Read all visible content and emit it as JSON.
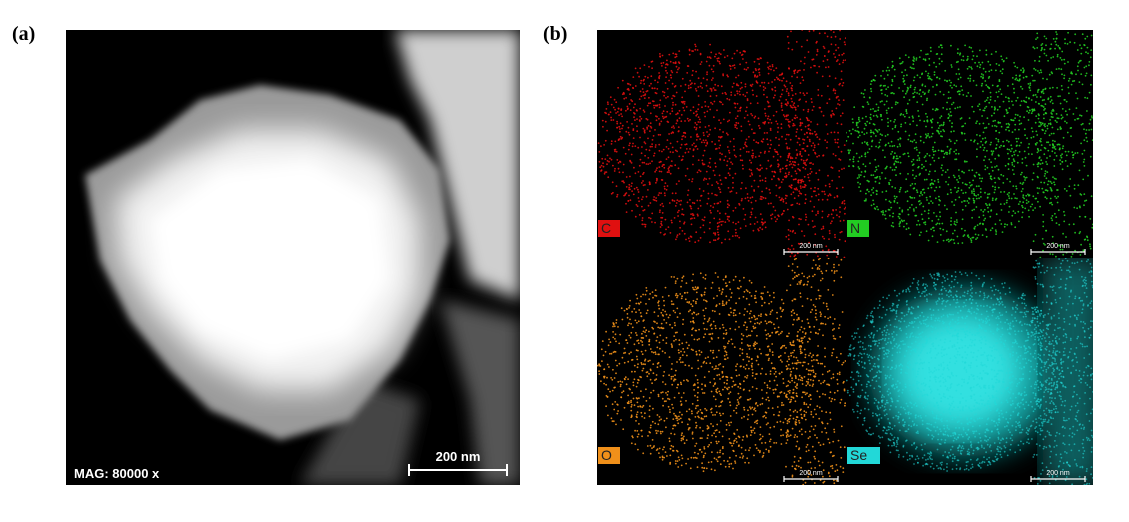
{
  "panel_a": {
    "label": "(a)",
    "magnification": "MAG: 80000 x",
    "scale_bar": "200 nm"
  },
  "panel_b": {
    "label": "(b)",
    "maps": [
      {
        "element": "C",
        "scale_bar": "200 nm"
      },
      {
        "element": "N",
        "scale_bar": "200 nm"
      },
      {
        "element": "O",
        "scale_bar": "200 nm"
      },
      {
        "element": "Se",
        "scale_bar": "200 nm"
      }
    ]
  }
}
